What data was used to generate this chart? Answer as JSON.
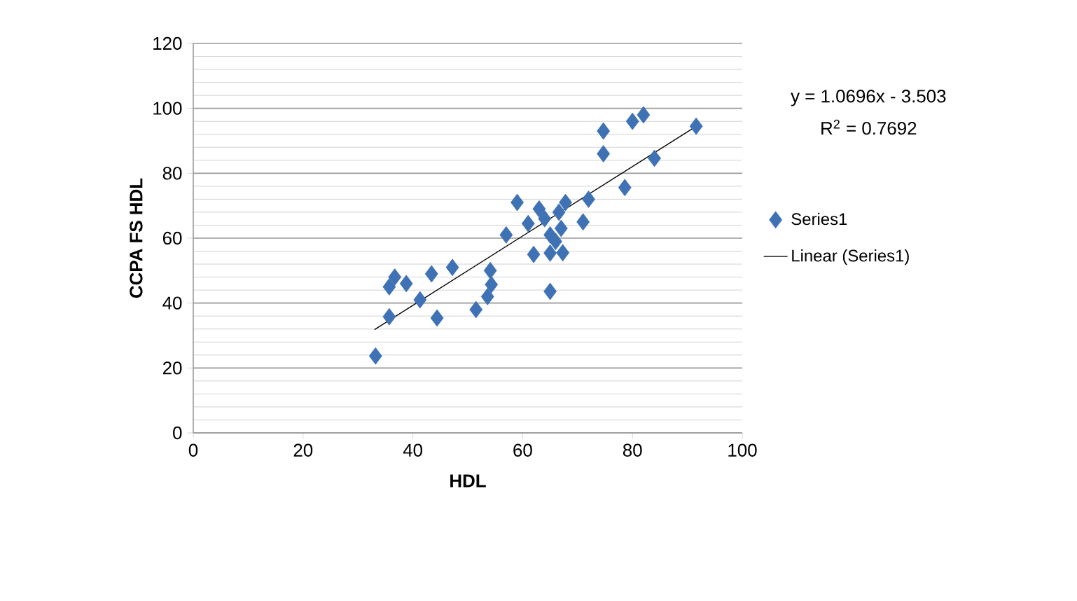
{
  "chart_data": {
    "type": "scatter",
    "xlabel": "HDL",
    "ylabel": "CCPA FS HDL",
    "xlim": [
      0,
      100
    ],
    "ylim": [
      0,
      120
    ],
    "xticks": [
      0,
      20,
      40,
      60,
      80,
      100
    ],
    "yticks": [
      0,
      20,
      40,
      60,
      80,
      100,
      120
    ],
    "grid": "y",
    "legend": "right",
    "marker": "diamond",
    "annotations": [
      "y = 1.0696x - 3.503",
      "R$^{2}$ = 0.7692"
    ],
    "series": [
      {
        "name": "Series1",
        "color": "#3f72b5",
        "x": [
          33.2,
          35.7,
          35.7,
          36.7,
          38.8,
          41.3,
          44.4,
          43.4,
          47.2,
          51.5,
          53.6,
          54.3,
          54.1,
          57,
          59,
          61,
          62,
          63,
          64,
          65,
          65,
          65,
          66,
          66.6,
          67.3,
          67,
          67.8,
          71,
          72,
          78.6,
          74.7,
          74.7,
          80,
          82,
          84,
          91.6
        ],
        "values": [
          23.7,
          35.8,
          45,
          48,
          46,
          41,
          35.4,
          49,
          51,
          38,
          42,
          45.7,
          50,
          61,
          71,
          64.5,
          55,
          69,
          66,
          61,
          55.4,
          43.6,
          59,
          68,
          55.5,
          63,
          71,
          65,
          72,
          75.6,
          93,
          86,
          96,
          98,
          84.6,
          94.5
        ]
      },
      {
        "name": "Linear (Series1)",
        "type": "line",
        "color": "#000000",
        "line_style": "solid",
        "marker": "none",
        "x": [
          33,
          92
        ],
        "values": [
          31.8,
          94.9
        ]
      }
    ]
  }
}
